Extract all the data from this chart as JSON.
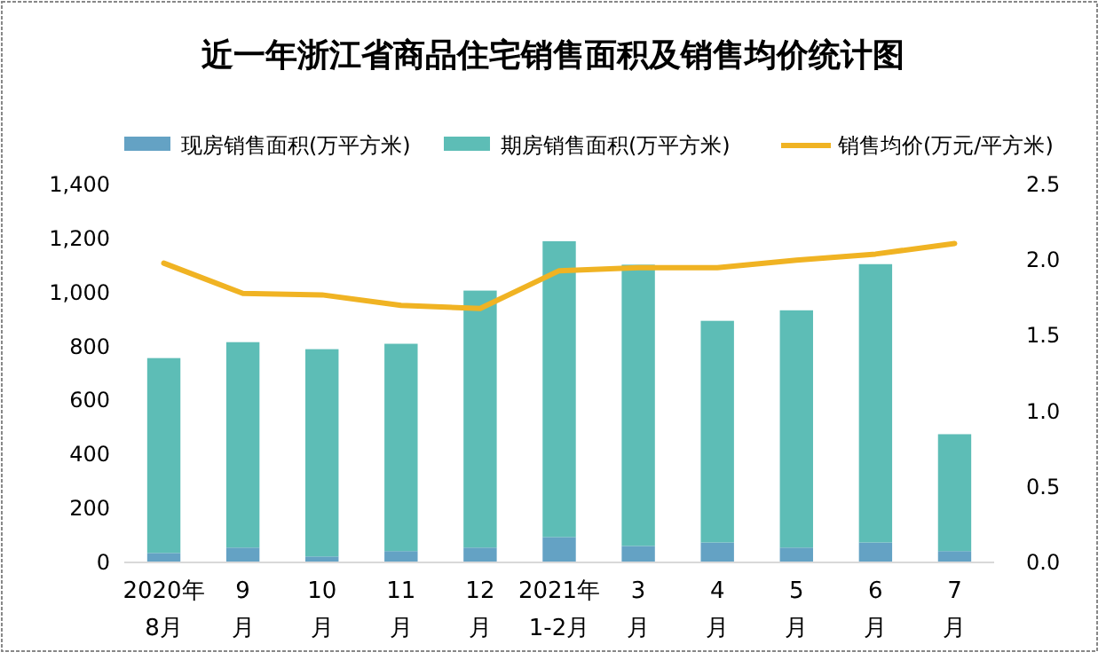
{
  "chart_data": {
    "type": "bar",
    "title": "近一年浙江省商品住宅销售面积及销售均价统计图",
    "categories": [
      "2020年\n8月",
      "9\n月",
      "10\n月",
      "11\n月",
      "12\n月",
      "2021年\n1-2月",
      "3\n月",
      "4\n月",
      "5\n月",
      "6\n月",
      "7\n月"
    ],
    "stacked": true,
    "series": [
      {
        "name": "现房销售面积(万平方米)",
        "color": "#64a2c4",
        "values": [
          35,
          55,
          22,
          42,
          55,
          94,
          61,
          74,
          55,
          74,
          42
        ]
      },
      {
        "name": "期房销售面积(万平方米)",
        "color": "#5dbdb6",
        "values": [
          722,
          761,
          768,
          768,
          952,
          1096,
          1042,
          821,
          879,
          1031,
          433
        ]
      },
      {
        "name": "销售均价(万元/平方米)",
        "type": "line",
        "axis": "y2",
        "color": "#f0b323",
        "values": [
          1.98,
          1.78,
          1.77,
          1.7,
          1.68,
          1.93,
          1.95,
          1.95,
          2.0,
          2.04,
          2.11
        ]
      }
    ],
    "ylim": [
      0,
      1400
    ],
    "yticks": [
      0,
      200,
      400,
      600,
      800,
      {
        "value": 1000,
        "label": "1,000"
      },
      {
        "value": 1200,
        "label": "1,200"
      },
      {
        "value": 1400,
        "label": "1,400"
      }
    ],
    "y2lim": [
      0,
      2.5
    ],
    "y2ticks": [
      {
        "value": 0,
        "label": "0.0"
      },
      0.5,
      {
        "value": 1,
        "label": "1.0"
      },
      1.5,
      {
        "value": 2,
        "label": "2.0"
      },
      2.5
    ],
    "legend": "top",
    "grid": false,
    "marker": "none",
    "line_style": "solid"
  }
}
